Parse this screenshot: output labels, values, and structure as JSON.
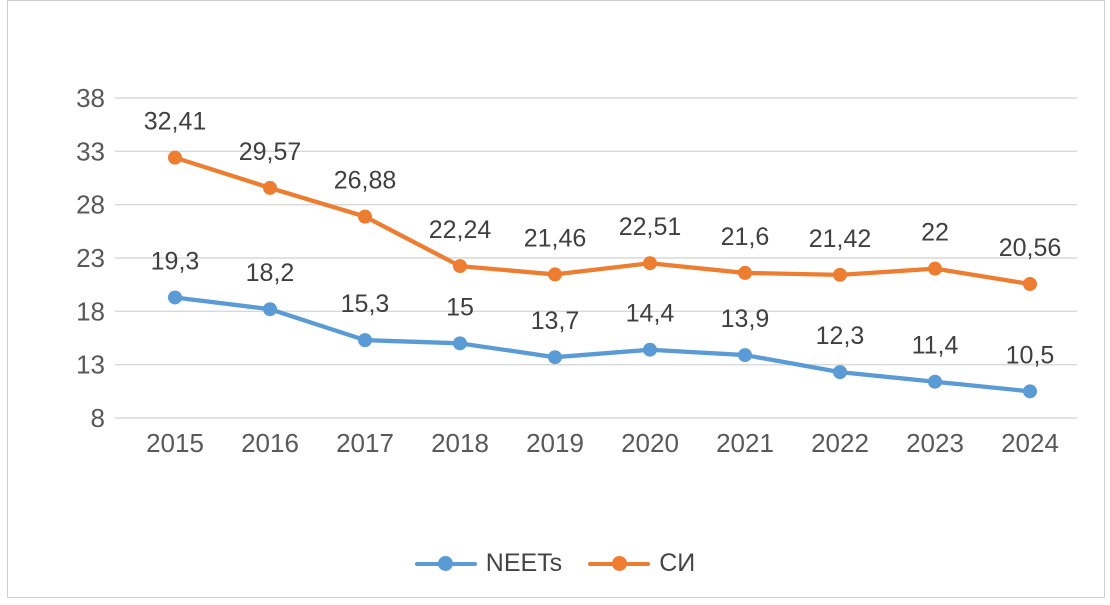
{
  "chart_data": {
    "type": "line",
    "title": "",
    "xlabel": "",
    "ylabel": "",
    "categories": [
      "2015",
      "2016",
      "2017",
      "2018",
      "2019",
      "2020",
      "2021",
      "2022",
      "2023",
      "2024"
    ],
    "series": [
      {
        "name": "NEETs",
        "color": "#5B9BD5",
        "values": [
          19.3,
          18.2,
          15.3,
          15,
          13.7,
          14.4,
          13.9,
          12.3,
          11.4,
          10.5
        ],
        "labels": [
          "19,3",
          "18,2",
          "15,3",
          "15",
          "13,7",
          "14,4",
          "13,9",
          "12,3",
          "11,4",
          "10,5"
        ]
      },
      {
        "name": "СИ",
        "color": "#ED7D31",
        "values": [
          32.41,
          29.57,
          26.88,
          22.24,
          21.46,
          22.51,
          21.6,
          21.42,
          22,
          20.56
        ],
        "labels": [
          "32,41",
          "29,57",
          "26,88",
          "22,24",
          "21,46",
          "22,51",
          "21,6",
          "21,42",
          "22",
          "20,56"
        ]
      }
    ],
    "y_axis": {
      "min": 8,
      "max": 38,
      "ticks": [
        38,
        33,
        28,
        23,
        18,
        13,
        8
      ]
    },
    "decimal_separator": ",",
    "grid": true,
    "legend_position": "bottom",
    "colors": {
      "gridline": "#d9d9d9",
      "axis_text": "#595959",
      "data_label_text": "#404040",
      "legend_text": "#444444"
    }
  },
  "legend": {
    "items": [
      {
        "label": "NEETs"
      },
      {
        "label": "СИ"
      }
    ]
  }
}
